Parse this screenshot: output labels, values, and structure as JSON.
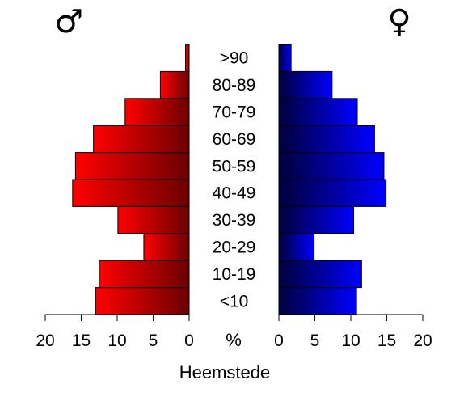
{
  "chart_data": {
    "type": "bar",
    "orientation": "horizontal-population-pyramid",
    "title": "Heemstede",
    "categories": [
      "<10",
      "10-19",
      "20-29",
      "30-39",
      "40-49",
      "50-59",
      "60-69",
      "70-79",
      "80-89",
      ">90"
    ],
    "series": [
      {
        "name": "♂",
        "side": "left",
        "values": [
          13.0,
          12.5,
          6.3,
          9.9,
          16.2,
          15.8,
          13.3,
          8.9,
          4.0,
          0.5
        ]
      },
      {
        "name": "♀",
        "side": "right",
        "values": [
          10.8,
          11.5,
          4.9,
          10.4,
          14.9,
          14.6,
          13.3,
          10.9,
          7.4,
          1.7
        ]
      }
    ],
    "xlim": [
      0,
      20
    ],
    "xticks": [
      "20",
      "15",
      "10",
      "5",
      "0",
      "0",
      "5",
      "10",
      "15",
      "20"
    ],
    "unit_label": "%",
    "grid": false,
    "colors": {
      "male_dark": "#6b0000",
      "male_light": "#ff0000",
      "female_dark": "#00003a",
      "female_light": "#0000ff",
      "bar_stroke": "#000000"
    }
  }
}
